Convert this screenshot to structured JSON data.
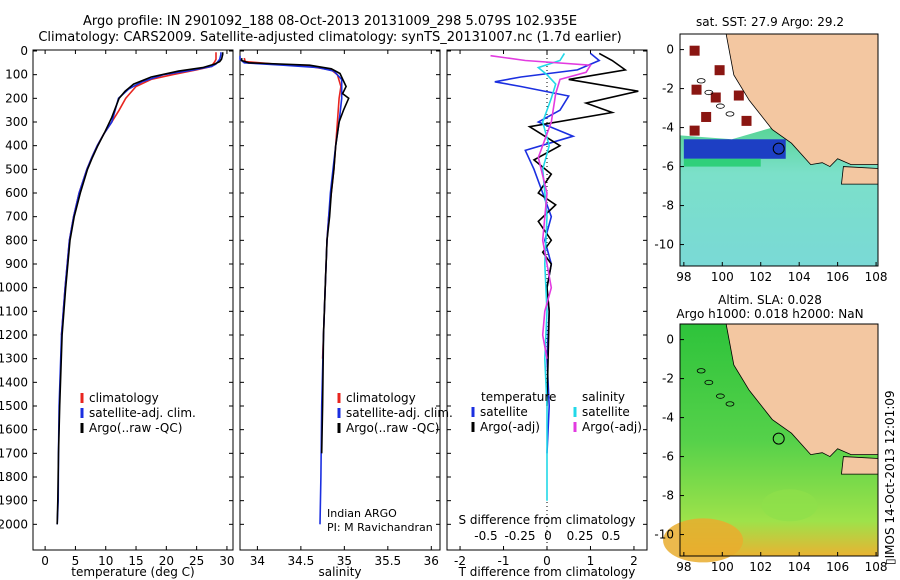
{
  "header": {
    "line1": "Argo profile: IN 2901092_188 08-Oct-2013 20131009_298 5.079S 102.935E",
    "line2": "Climatology: CARS2009. Satellite-adjusted climatology: synTS_20131007.nc (1.7d earlier)"
  },
  "side_text": "IMOS 14-Oct-2013 12:01:09",
  "colors": {
    "clim": "#e8251f",
    "sat": "#1b2fe0",
    "argo": "#000000",
    "sal_sat": "#22d8e8",
    "sal_argo": "#e23be0",
    "land": "#f3c7a1"
  },
  "chart_data": [
    {
      "type": "line",
      "xlabel": "temperature (deg C)",
      "ylabel": "",
      "xlim": [
        -2,
        31
      ],
      "ylim": [
        2100,
        0
      ],
      "xticks": [
        0,
        5,
        10,
        15,
        20,
        25,
        30
      ],
      "yticks": [
        0,
        100,
        200,
        300,
        400,
        500,
        600,
        700,
        800,
        900,
        1000,
        1100,
        1200,
        1300,
        1400,
        1500,
        1600,
        1700,
        1800,
        1900,
        2000
      ],
      "legend": [
        "climatology",
        "satellite-adj. clim.",
        "Argo(..raw -QC)"
      ],
      "series": [
        {
          "name": "climatology",
          "color": "#e8251f",
          "x": [
            28.2,
            28.2,
            28.2,
            28,
            27.7,
            27.5,
            25,
            21,
            17.5,
            15,
            13.3,
            12.2,
            11,
            9.7,
            8.6,
            7.7,
            6.9,
            5.6,
            4.7,
            4.0,
            3.3,
            2.7
          ],
          "y": [
            5,
            20,
            35,
            45,
            55,
            65,
            80,
            100,
            120,
            150,
            200,
            250,
            300,
            350,
            400,
            450,
            500,
            600,
            700,
            800,
            1000,
            1200
          ]
        },
        {
          "name": "satellite-adj. clim.",
          "color": "#1b2fe0",
          "x": [
            29.0,
            29.0,
            28.9,
            28.8,
            28.5,
            28.2,
            27.5,
            24.5,
            19.5,
            16.0,
            13.8,
            12.1,
            11.0,
            9.7,
            8.6,
            7.7,
            6.9,
            5.6,
            4.7,
            4.0,
            3.3,
            2.7,
            2.3,
            2.2,
            2.15,
            2.0
          ],
          "y": [
            5,
            15,
            25,
            35,
            45,
            55,
            65,
            80,
            100,
            130,
            160,
            200,
            300,
            350,
            400,
            450,
            500,
            600,
            700,
            800,
            1000,
            1200,
            1500,
            1700,
            1900,
            2000
          ]
        },
        {
          "name": "Argo(..raw -QC)",
          "color": "#000000",
          "x": [
            29.3,
            29.3,
            29.2,
            29.1,
            28.8,
            28.0,
            26.0,
            22.0,
            17.5,
            14.6,
            13.2,
            12.2,
            11.0,
            9.9,
            8.7,
            7.8,
            7.0,
            5.8,
            4.8,
            4.1,
            3.4,
            2.8,
            2.4,
            2.2,
            2.1,
            2.0
          ],
          "y": [
            5,
            15,
            25,
            35,
            45,
            55,
            70,
            85,
            110,
            140,
            170,
            200,
            280,
            340,
            400,
            450,
            500,
            600,
            700,
            800,
            1000,
            1200,
            1500,
            1700,
            1900,
            2000
          ]
        }
      ]
    },
    {
      "type": "line",
      "xlabel": "salinity",
      "ylabel": "",
      "xlim": [
        33.8,
        36.1
      ],
      "ylim": [
        2100,
        0
      ],
      "xticks": [
        34,
        34.5,
        35,
        35.5,
        36
      ],
      "xticklabels": [
        "34",
        "34.5",
        "35",
        "35.5",
        "36"
      ],
      "legend": [
        "climatology",
        "satellite-adj. clim.",
        "Argo(..raw -QC)"
      ],
      "annotations": [
        "Indian ARGO",
        "PI: M Ravichandran"
      ],
      "series": [
        {
          "name": "climatology",
          "color": "#e8251f",
          "x": [
            33.85,
            33.86,
            34.2,
            34.6,
            34.85,
            34.92,
            34.96,
            34.94,
            34.92,
            34.9,
            34.88,
            34.85,
            34.82,
            34.8,
            34.78,
            34.76,
            34.75
          ],
          "y": [
            30,
            45,
            55,
            65,
            80,
            100,
            150,
            200,
            300,
            400,
            500,
            600,
            700,
            800,
            1000,
            1200,
            1300
          ]
        },
        {
          "name": "satellite-adj. clim.",
          "color": "#1b2fe0",
          "x": [
            33.8,
            33.8,
            33.85,
            34.3,
            34.7,
            34.88,
            34.97,
            34.97,
            34.94,
            34.9,
            34.87,
            34.84,
            34.82,
            34.8,
            34.78,
            34.76,
            34.74,
            34.73,
            34.72
          ],
          "y": [
            20,
            35,
            50,
            60,
            70,
            85,
            120,
            200,
            300,
            400,
            500,
            600,
            700,
            800,
            1000,
            1200,
            1500,
            1800,
            2000
          ]
        },
        {
          "name": "Argo(..raw -QC)",
          "color": "#000000",
          "x": [
            33.82,
            33.82,
            33.9,
            34.6,
            34.85,
            34.95,
            35.02,
            34.98,
            35.05,
            34.99,
            34.94,
            34.9,
            34.88,
            34.85,
            34.83,
            34.8,
            34.78,
            34.76,
            34.75,
            34.74
          ],
          "y": [
            30,
            40,
            50,
            60,
            75,
            95,
            150,
            180,
            200,
            250,
            300,
            400,
            500,
            600,
            700,
            800,
            1000,
            1200,
            1500,
            1700
          ]
        }
      ]
    },
    {
      "type": "line",
      "xlabel": "T difference from climatology",
      "xlabel_top": "S difference from climatology",
      "xlim": [
        -2.3,
        2.3
      ],
      "ylim": [
        2100,
        0
      ],
      "xticks": [
        -2,
        -1,
        0,
        1,
        2
      ],
      "xticks_top": [
        "-0.5",
        "-0.25",
        "0",
        "0.25",
        "0.5"
      ],
      "legend_left": {
        "title": "temperature",
        "items": [
          "satellite",
          "Argo(-adj)"
        ]
      },
      "legend_right": {
        "title": "salinity",
        "items": [
          "satellite",
          "Argo(-adj)"
        ]
      },
      "series": [
        {
          "name": "satellite",
          "color": "#1b2fe0",
          "x": [
            1.0,
            1.2,
            0.7,
            -0.6,
            -1.2,
            -0.6,
            0.5,
            0.3,
            -0.2,
            0.6,
            -0.5,
            -0.3,
            -0.1,
            0.1,
            -0.05,
            0.1,
            0,
            0.05,
            0,
            0.05,
            0
          ],
          "y": [
            10,
            40,
            80,
            110,
            130,
            150,
            190,
            250,
            300,
            360,
            420,
            500,
            600,
            700,
            800,
            900,
            1000,
            1100,
            1300,
            1500,
            1700
          ]
        },
        {
          "name": "Argo(-adj)",
          "color": "#000000",
          "x": [
            1.2,
            1.5,
            1.8,
            0.5,
            2.1,
            0.9,
            1.5,
            -0.4,
            0.3,
            -0.3,
            0.1,
            -0.2,
            0.2,
            -0.2,
            0.1,
            -0.1,
            0.1,
            0,
            0.05,
            0
          ],
          "y": [
            10,
            40,
            80,
            120,
            170,
            220,
            260,
            320,
            400,
            460,
            520,
            600,
            650,
            720,
            800,
            850,
            900,
            1000,
            1100,
            1500
          ]
        },
        {
          "name": "salinity satellite",
          "color": "#22d8e8",
          "x": [
            0.4,
            0.3,
            -0.2,
            0.0,
            0.2,
            0.1,
            -0.1,
            0.05,
            -0.1,
            0.0,
            -0.05,
            0.0,
            -0.05,
            0.0,
            0.0,
            0.0
          ],
          "y": [
            10,
            40,
            70,
            100,
            140,
            200,
            300,
            400,
            500,
            700,
            900,
            1100,
            1300,
            1500,
            1700,
            1900
          ]
        },
        {
          "name": "salinity Argo(-adj)",
          "color": "#e23be0",
          "x": [
            -1.3,
            -0.5,
            1.0,
            0.9,
            0.3,
            0.2,
            0.1,
            -0.2,
            0.0,
            -0.1,
            0.1,
            -0.05,
            -0.1,
            0.0
          ],
          "y": [
            20,
            40,
            60,
            90,
            120,
            180,
            300,
            450,
            600,
            800,
            1000,
            1100,
            1200,
            1300
          ]
        }
      ]
    },
    {
      "type": "heatmap",
      "title": "sat. SST: 27.9 Argo: 29.2",
      "xticks": [
        98,
        100,
        102,
        104,
        106,
        108
      ],
      "yticks": [
        0,
        -2,
        -4,
        -6,
        -8,
        -10
      ],
      "xlim": [
        97.8,
        108.1
      ],
      "ylim": [
        -11.1,
        0.8
      ],
      "marker": {
        "lon": 102.935,
        "lat": -5.079
      }
    },
    {
      "type": "heatmap",
      "title": "Altim. SLA: 0.028",
      "subtitle": "Argo h1000: 0.018 h2000: NaN",
      "xticks": [
        98,
        100,
        102,
        104,
        106,
        108
      ],
      "yticks": [
        0,
        -2,
        -4,
        -6,
        -8,
        -10
      ],
      "xlim": [
        97.8,
        108.1
      ],
      "ylim": [
        -11.1,
        0.8
      ],
      "marker": {
        "lon": 102.935,
        "lat": -5.079
      }
    }
  ]
}
